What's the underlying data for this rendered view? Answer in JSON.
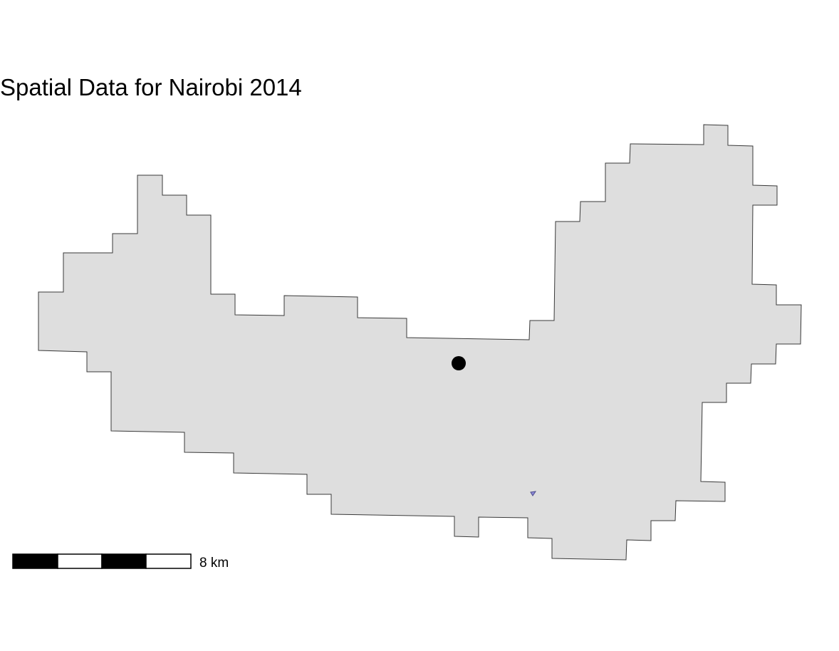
{
  "map": {
    "title": "Spatial Data for Nairobi 2014",
    "colors": {
      "background": "#ffffff",
      "region_fill": "#dedede",
      "region_stroke": "#3a3a3a",
      "point": "#000000",
      "feature_fill": "#8f8ad9",
      "feature_stroke": "#4a4a8a"
    },
    "layers": [
      {
        "name": "nairobi-boundary",
        "kind": "polygon"
      },
      {
        "name": "point-marker",
        "kind": "point"
      },
      {
        "name": "small-feature",
        "kind": "polygon"
      }
    ],
    "scale_bar": {
      "label": "8 km",
      "segments": 4,
      "segment_colors": [
        "#000000",
        "#ffffff",
        "#000000",
        "#ffffff"
      ]
    }
  }
}
